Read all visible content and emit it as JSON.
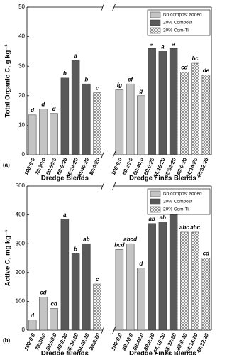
{
  "chart_data": [
    {
      "type": "bar",
      "panel_label": "(a)",
      "ylabel": "Total Organic C, g kg⁻¹",
      "ylim": [
        0,
        50
      ],
      "yticks": [
        0,
        10,
        20,
        30,
        40,
        50
      ],
      "groups": [
        {
          "label": "Dredge Blends",
          "categories": [
            "100:0:0",
            "70:30:0",
            "50:50:0",
            "80:0:20",
            "56:24:20",
            "40:40:20",
            "80:0:20"
          ]
        },
        {
          "label": "Dredge Fines Blends",
          "categories": [
            "100:0:0",
            "80:20:0",
            "60:40:0",
            "80:0:20",
            "64:16:20",
            "48:32:20",
            "80:0:20",
            "64:16:20",
            "48:32:20"
          ]
        }
      ],
      "series": [
        {
          "name": "No compost added",
          "color": "#c4c4c4",
          "hatch": false,
          "values": [
            13.5,
            15.5,
            14,
            null,
            null,
            null,
            null,
            22,
            24,
            20,
            null,
            null,
            null,
            null,
            null,
            null
          ],
          "letters": [
            "d",
            "d",
            "d",
            null,
            null,
            null,
            null,
            "fg",
            "ef",
            "g",
            null,
            null,
            null,
            null,
            null,
            null
          ]
        },
        {
          "name": "20% Compost",
          "color": "#595959",
          "hatch": false,
          "values": [
            null,
            null,
            null,
            26,
            32,
            24,
            null,
            null,
            null,
            null,
            36,
            35,
            36,
            null,
            null,
            null
          ],
          "letters": [
            null,
            null,
            null,
            "b",
            "a",
            "b",
            null,
            null,
            null,
            null,
            "a",
            "a",
            "a",
            null,
            null,
            null
          ]
        },
        {
          "name": "20% Com-Til",
          "color": "#ffffff",
          "hatch": true,
          "values": [
            null,
            null,
            null,
            null,
            null,
            null,
            21,
            null,
            null,
            null,
            null,
            null,
            null,
            28,
            31,
            27
          ],
          "letters": [
            null,
            null,
            null,
            null,
            null,
            null,
            "c",
            null,
            null,
            null,
            null,
            null,
            null,
            "cd",
            "bc",
            "de"
          ]
        }
      ]
    },
    {
      "type": "bar",
      "panel_label": "(b)",
      "ylabel": "Active C, mg kg⁻¹",
      "ylim": [
        0,
        500
      ],
      "yticks": [
        0,
        100,
        200,
        300,
        400,
        500
      ],
      "groups": [
        {
          "label": "Dredge Blends",
          "categories": [
            "100:0:0",
            "70:30:0",
            "50:50:0",
            "80:0:20",
            "56:24:20",
            "40:40:20",
            "80:0:20"
          ]
        },
        {
          "label": "Dredge Fines Blends",
          "categories": [
            "100:0:0",
            "80:20:0",
            "60:40:0",
            "80:0:20",
            "64:16:20",
            "48:32:20",
            "80:0:20",
            "64:16:20",
            "48:32:20"
          ]
        }
      ],
      "series": [
        {
          "name": "No compost added",
          "color": "#c4c4c4",
          "hatch": false,
          "values": [
            35,
            115,
            75,
            null,
            null,
            null,
            null,
            280,
            300,
            215,
            null,
            null,
            null,
            null,
            null,
            null
          ],
          "letters": [
            "d",
            "cd",
            "cd",
            null,
            null,
            null,
            null,
            "bcd",
            "abcd",
            "d",
            null,
            null,
            null,
            null,
            null,
            null
          ]
        },
        {
          "name": "20% Compost",
          "color": "#595959",
          "hatch": false,
          "values": [
            null,
            null,
            null,
            385,
            265,
            300,
            null,
            null,
            null,
            null,
            370,
            375,
            410,
            null,
            null,
            null
          ],
          "letters": [
            null,
            null,
            null,
            "a",
            "b",
            "ab",
            null,
            null,
            null,
            null,
            "ab",
            "ab",
            "a",
            null,
            null,
            null
          ]
        },
        {
          "name": "20% Com-Til",
          "color": "#ffffff",
          "hatch": true,
          "values": [
            null,
            null,
            null,
            null,
            null,
            null,
            160,
            null,
            null,
            null,
            null,
            null,
            null,
            340,
            340,
            250
          ],
          "letters": [
            null,
            null,
            null,
            null,
            null,
            null,
            "c",
            null,
            null,
            null,
            null,
            null,
            null,
            "abc",
            "abc",
            "cd"
          ]
        }
      ]
    }
  ]
}
